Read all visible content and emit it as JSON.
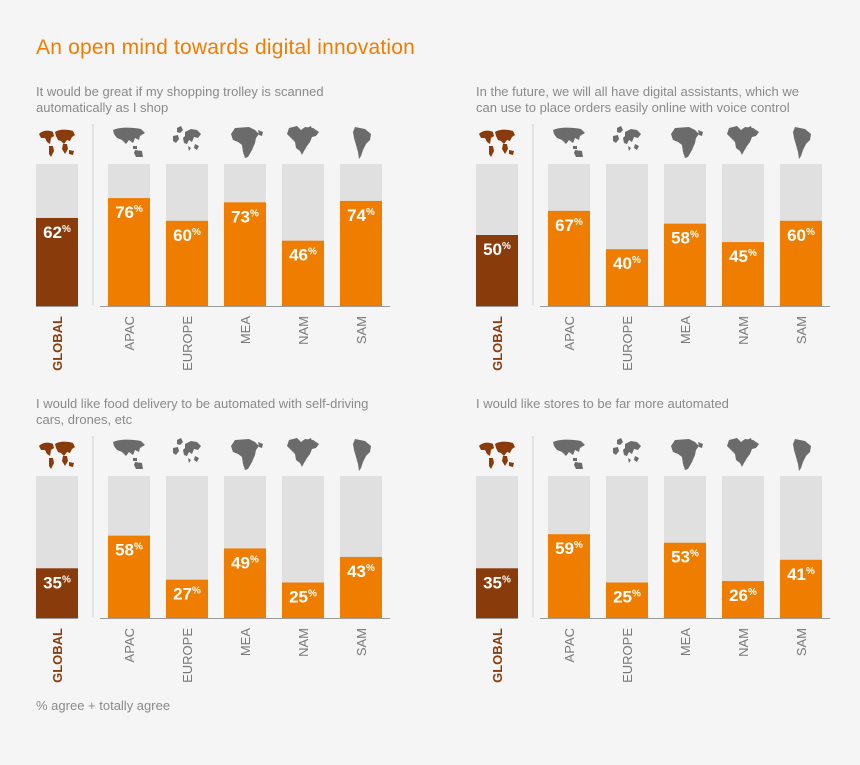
{
  "title": "An open mind towards digital innovation",
  "footnote": "% agree + totally agree",
  "colors": {
    "title": "#ef7d00",
    "global_bar": "#8a3b0b",
    "region_bar": "#ef7d00",
    "bar_track": "#e0e0e0",
    "map_global": "#8a3b0b",
    "map_region": "#6b6b6b"
  },
  "icons": [
    "world-map-icon",
    "asia-pacific-map-icon",
    "europe-map-icon",
    "africa-middle-east-map-icon",
    "north-america-map-icon",
    "south-america-map-icon"
  ],
  "chart_data": [
    {
      "type": "bar",
      "title": "It would be great if my shopping trolley is scanned automatically as I shop",
      "categories": [
        "GLOBAL",
        "APAC",
        "EUROPE",
        "MEA",
        "NAM",
        "SAM"
      ],
      "values": [
        62,
        76,
        60,
        73,
        46,
        74
      ],
      "ylim": [
        0,
        100
      ]
    },
    {
      "type": "bar",
      "title": "In the future, we will all have digital assistants, which we can use to place orders easily online with voice control",
      "categories": [
        "GLOBAL",
        "APAC",
        "EUROPE",
        "MEA",
        "NAM",
        "SAM"
      ],
      "values": [
        50,
        67,
        40,
        58,
        45,
        60
      ],
      "ylim": [
        0,
        100
      ]
    },
    {
      "type": "bar",
      "title": "I would like food delivery to be automated with self-driving cars, drones, etc",
      "categories": [
        "GLOBAL",
        "APAC",
        "EUROPE",
        "MEA",
        "NAM",
        "SAM"
      ],
      "values": [
        35,
        58,
        27,
        49,
        25,
        43
      ],
      "ylim": [
        0,
        100
      ]
    },
    {
      "type": "bar",
      "title": "I would like stores to be far more automated",
      "categories": [
        "GLOBAL",
        "APAC",
        "EUROPE",
        "MEA",
        "NAM",
        "SAM"
      ],
      "values": [
        35,
        59,
        25,
        53,
        26,
        41
      ],
      "ylim": [
        0,
        100
      ]
    }
  ]
}
